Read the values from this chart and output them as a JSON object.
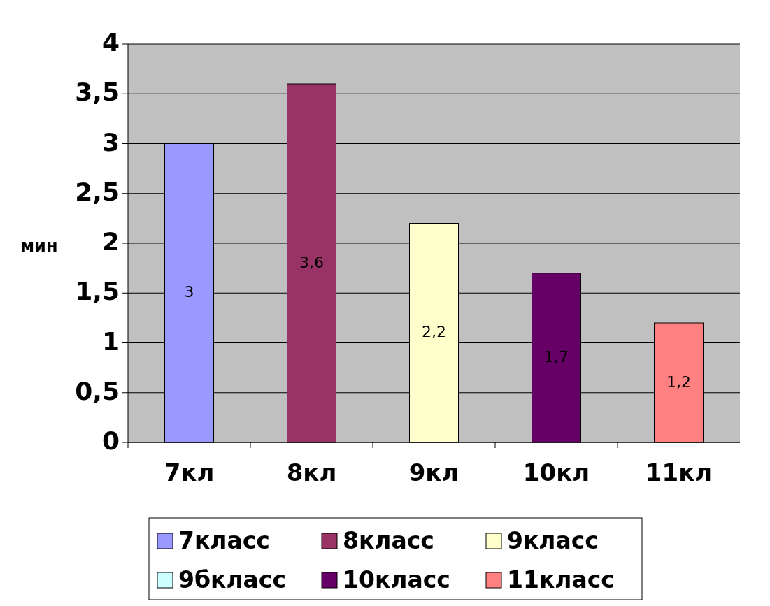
{
  "chart_data": {
    "type": "bar",
    "ylabel": "мин",
    "categories": [
      "7кл",
      "8кл",
      "9кл",
      "10кл",
      "11кл"
    ],
    "series": [
      {
        "name": "7класс",
        "color": "#9999ff",
        "values": [
          3,
          null,
          null,
          null,
          null
        ],
        "value_labels": [
          "3",
          null,
          null,
          null,
          null
        ]
      },
      {
        "name": "8класс",
        "color": "#993366",
        "values": [
          null,
          3.6,
          null,
          null,
          null
        ],
        "value_labels": [
          null,
          "3,6",
          null,
          null,
          null
        ]
      },
      {
        "name": "9класс",
        "color": "#ffffcc",
        "values": [
          null,
          null,
          2.2,
          null,
          null
        ],
        "value_labels": [
          null,
          null,
          "2,2",
          null,
          null
        ]
      },
      {
        "name": "9бкласс",
        "color": "#ccffff",
        "values": [
          null,
          null,
          null,
          null,
          null
        ]
      },
      {
        "name": "10класс",
        "color": "#660066",
        "values": [
          null,
          null,
          null,
          1.7,
          null
        ],
        "value_labels": [
          null,
          null,
          null,
          "1,7",
          null
        ]
      },
      {
        "name": "11класс",
        "color": "#ff8080",
        "values": [
          null,
          null,
          null,
          null,
          1.2
        ],
        "value_labels": [
          null,
          null,
          null,
          null,
          "1,2"
        ]
      }
    ],
    "ylim": [
      0,
      4
    ],
    "yticks": [
      0,
      {
        "value": 0.5,
        "label": "0,5"
      },
      1,
      {
        "value": 1.5,
        "label": "1,5"
      },
      2,
      {
        "value": 2.5,
        "label": "2,5"
      },
      3,
      {
        "value": 3.5,
        "label": "3,5"
      },
      4
    ],
    "grid": "y",
    "legend": "bottom"
  }
}
